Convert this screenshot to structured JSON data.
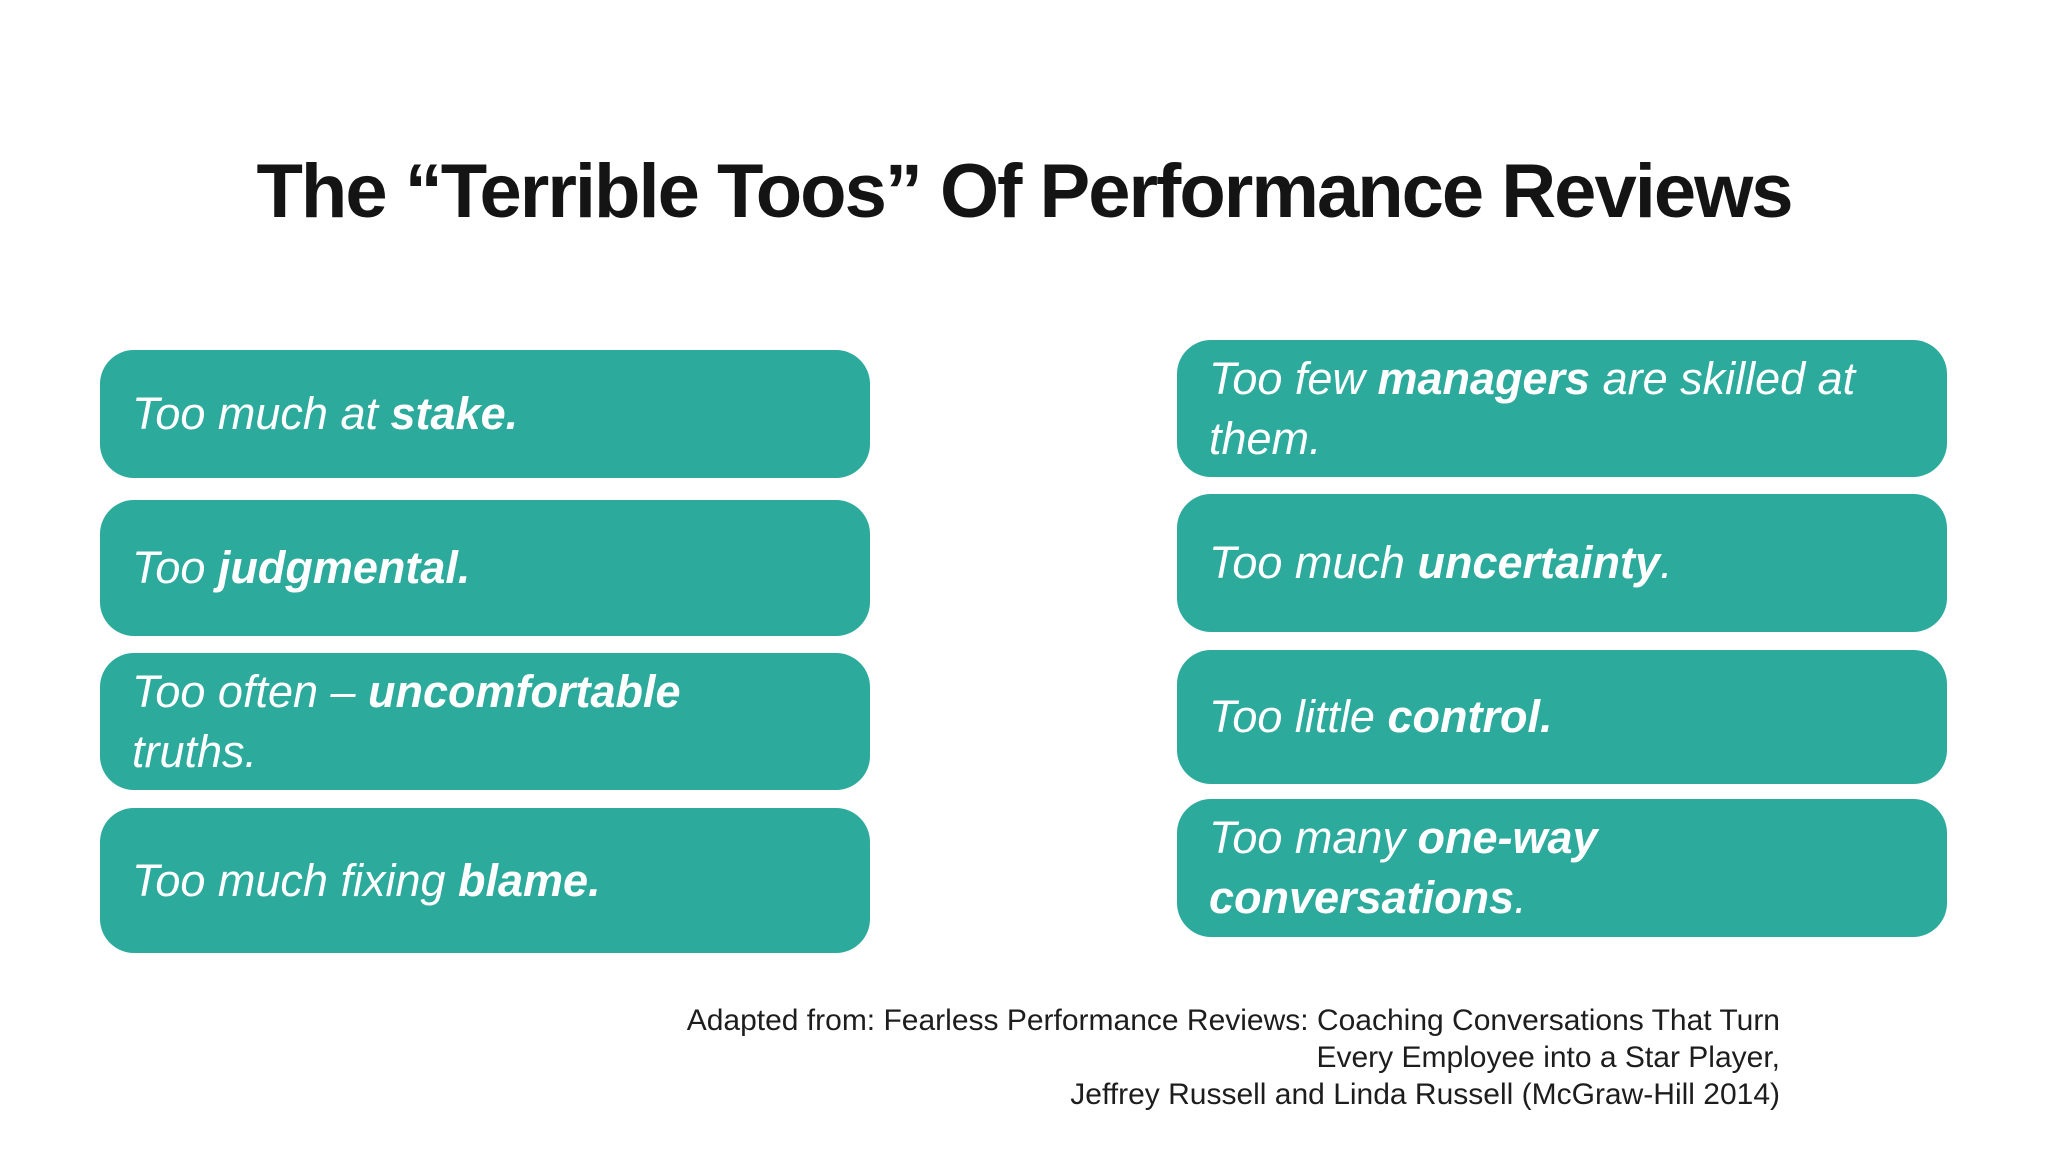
{
  "colors": {
    "accent": "#2caa9c",
    "background": "#ffffff",
    "title_text": "#141414",
    "box_text": "#ffffff",
    "attribution_text": "#1d1d1d"
  },
  "title": "The “Terrible Toos” Of Performance Reviews",
  "boxes": {
    "left": [
      {
        "lines": [
          [
            {
              "t": "Too much at "
            },
            {
              "t": "stake.",
              "b": true
            }
          ]
        ]
      },
      {
        "lines": [
          [
            {
              "t": "Too "
            },
            {
              "t": "judgmental.",
              "b": true
            }
          ]
        ]
      },
      {
        "lines": [
          [
            {
              "t": "Too often – "
            },
            {
              "t": "uncomfortable",
              "b": true
            }
          ],
          [
            {
              "t": "truths."
            }
          ]
        ]
      },
      {
        "lines": [
          [
            {
              "t": "Too much fixing "
            },
            {
              "t": "blame.",
              "b": true
            }
          ]
        ]
      }
    ],
    "right": [
      {
        "lines": [
          [
            {
              "t": "Too few "
            },
            {
              "t": "managers",
              "b": true
            },
            {
              "t": " are skilled at"
            }
          ],
          [
            {
              "t": "them."
            }
          ]
        ]
      },
      {
        "lines": [
          [
            {
              "t": "Too much "
            },
            {
              "t": "uncertainty",
              "b": true
            },
            {
              "t": "."
            }
          ]
        ]
      },
      {
        "lines": [
          [
            {
              "t": "Too little "
            },
            {
              "t": "control.",
              "b": true
            }
          ]
        ]
      },
      {
        "lines": [
          [
            {
              "t": "Too many "
            },
            {
              "t": "one-way",
              "b": true
            }
          ],
          [
            {
              "t": "conversations",
              "b": true
            },
            {
              "t": "."
            }
          ]
        ]
      }
    ]
  },
  "attribution": {
    "lines": [
      "Adapted from: Fearless Performance Reviews: Coaching Conversations That Turn",
      "Every Employee into a Star Player,",
      "Jeffrey Russell and Linda Russell (McGraw-Hill 2014)"
    ]
  }
}
